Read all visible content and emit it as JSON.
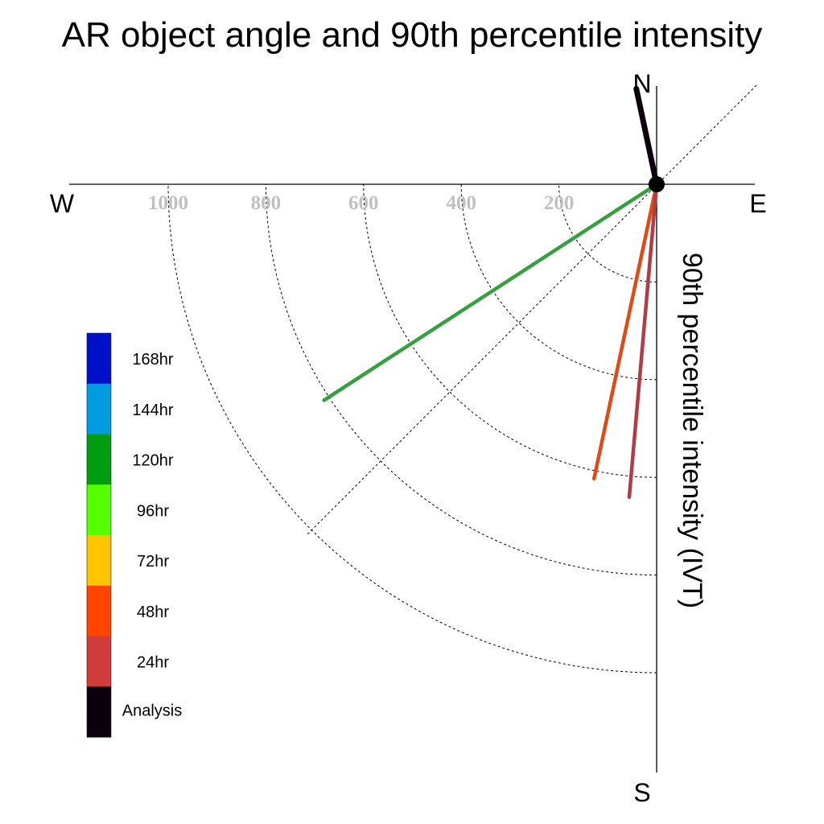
{
  "chart_data": {
    "type": "polar-vector",
    "title": "AR object angle and 90th percentile intensity",
    "ylabel": "90th percentile intensity (IVT)",
    "compass": {
      "north": "N",
      "south": "S",
      "east": "E",
      "west": "W"
    },
    "radial_ticks": [
      200,
      400,
      600,
      800,
      1000
    ],
    "radial_tick_labels": [
      "200",
      "400",
      "600",
      "800",
      "1000"
    ],
    "radial_lim": [
      0,
      1000
    ],
    "grid": true,
    "legend_position": "left",
    "legend": [
      {
        "label": "168hr",
        "color": "#0010c8"
      },
      {
        "label": "144hr",
        "color": "#009be0"
      },
      {
        "label": "120hr",
        "color": "#009c12"
      },
      {
        "label": "96hr",
        "color": "#55ff00"
      },
      {
        "label": "72hr",
        "color": "#ffc500"
      },
      {
        "label": "48hr",
        "color": "#ff4500"
      },
      {
        "label": "24hr",
        "color": "#d03c3c"
      },
      {
        "label": "Analysis",
        "color": "#0c000c"
      }
    ],
    "series": [
      {
        "name": "Analysis",
        "angle_deg": 348,
        "magnitude": 200,
        "color": "#0c000c"
      },
      {
        "name": "120hr",
        "angle_deg": 237,
        "magnitude": 812,
        "color": "#36a040"
      },
      {
        "name": "48hr",
        "angle_deg": 192,
        "magnitude": 616,
        "color": "#e04a15"
      },
      {
        "name": "24hr",
        "angle_deg": 185,
        "magnitude": 643,
        "color": "#b03c44"
      }
    ]
  }
}
